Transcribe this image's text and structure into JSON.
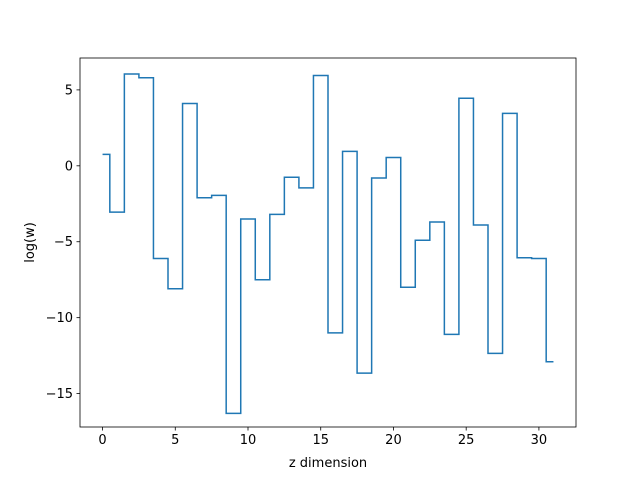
{
  "chart_data": {
    "type": "line",
    "drawstyle": "steps-mid",
    "title": "",
    "xlabel": "z dimension",
    "ylabel": "log(w)",
    "xlim": [
      -1.55,
      32.55
    ],
    "ylim": [
      -17.2,
      7.1
    ],
    "xticks": [
      0,
      5,
      10,
      15,
      20,
      25,
      30
    ],
    "xtick_labels": [
      "0",
      "5",
      "10",
      "15",
      "20",
      "25",
      "30"
    ],
    "yticks": [
      5,
      0,
      -5,
      -10,
      -15
    ],
    "ytick_labels": [
      "5",
      "0",
      "−5",
      "−10",
      "−15"
    ],
    "grid": false,
    "line_color": "#1f77b4",
    "series": [
      {
        "x": [
          0,
          1,
          2,
          3,
          4,
          5,
          6,
          7,
          8,
          9,
          10,
          11,
          12,
          13,
          14,
          15,
          16,
          17,
          18,
          19,
          20,
          21,
          22,
          23,
          24,
          25,
          26,
          27,
          28,
          29,
          30,
          31
        ],
        "values": [
          0.75,
          -3.05,
          6.05,
          5.8,
          -6.1,
          -8.1,
          4.1,
          -2.1,
          -1.95,
          -16.3,
          -3.5,
          -7.5,
          -3.2,
          -0.75,
          -1.45,
          5.95,
          -11.0,
          0.95,
          -13.65,
          -0.8,
          0.55,
          -8.0,
          -4.9,
          -3.7,
          -11.1,
          4.45,
          -3.9,
          -12.35,
          3.45,
          -6.05,
          -6.1,
          -12.9
        ]
      }
    ]
  }
}
